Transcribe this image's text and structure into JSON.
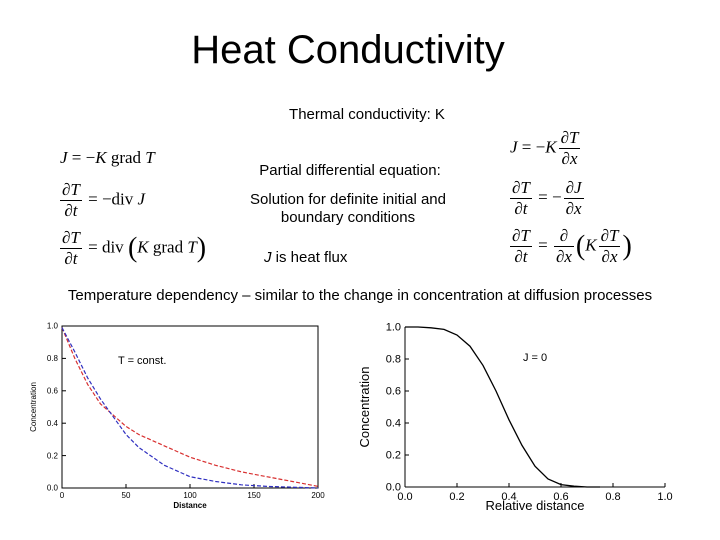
{
  "slide": {
    "title": "Heat Conductivity",
    "text_thermal_conductivity": "Thermal conductivity: K",
    "text_pde": "Partial differential equation:",
    "text_solution": "Solution for definite initial and boundary conditions",
    "text_flux_var": "J",
    "text_flux_rest": " is heat flux",
    "text_temperature": "Temperature dependency – similar to the change in concentration at diffusion processes"
  },
  "equations": {
    "left_1": "J = −K grad T",
    "left_2_rhs": "= −div J",
    "left_3_rhs": "= div (K grad T)",
    "right_1": "J = −K ∂T/∂x",
    "right_2": "∂T/∂t = −∂J/∂x",
    "right_3": "∂T/∂t = ∂/∂x (K ∂T/∂x)"
  },
  "chart_data": [
    {
      "type": "line",
      "xlabel": "Distance",
      "ylabel": "Concentration",
      "annotation": "T = const.",
      "xlim": [
        0,
        200
      ],
      "ylim": [
        0,
        1.0
      ],
      "xticks": [
        "0",
        "50",
        "100",
        "150",
        "200"
      ],
      "yticks": [
        "0.0",
        "0.2",
        "0.4",
        "0.6",
        "0.8",
        "1.0"
      ],
      "series": [
        {
          "color": "#d83030",
          "x": [
            0,
            10,
            20,
            30,
            40,
            50,
            60,
            80,
            100,
            120,
            140,
            160,
            180,
            200
          ],
          "y": [
            0.99,
            0.8,
            0.64,
            0.52,
            0.45,
            0.38,
            0.33,
            0.26,
            0.19,
            0.14,
            0.1,
            0.07,
            0.04,
            0.01
          ]
        },
        {
          "color": "#3030c0",
          "x": [
            0,
            10,
            20,
            30,
            40,
            50,
            60,
            80,
            100,
            120,
            140,
            160,
            180,
            200
          ],
          "y": [
            0.99,
            0.84,
            0.68,
            0.55,
            0.44,
            0.33,
            0.25,
            0.14,
            0.07,
            0.04,
            0.02,
            0.01,
            0.005,
            0.0
          ]
        }
      ]
    },
    {
      "type": "line",
      "xlabel": "Relative distance",
      "ylabel": "Concentration",
      "annotation": "J = 0",
      "xlim": [
        0,
        1.0
      ],
      "ylim": [
        0,
        1.0
      ],
      "xticks": [
        "0.0",
        "0.2",
        "0.4",
        "0.6",
        "0.8",
        "1.0"
      ],
      "yticks": [
        "0.0",
        "0.2",
        "0.4",
        "0.6",
        "0.8",
        "1.0"
      ],
      "series": [
        {
          "color": "#000000",
          "x": [
            0,
            0.05,
            0.1,
            0.15,
            0.2,
            0.25,
            0.3,
            0.35,
            0.4,
            0.45,
            0.5,
            0.55,
            0.6,
            0.65,
            0.7,
            0.75
          ],
          "y": [
            1.0,
            1.0,
            0.995,
            0.985,
            0.95,
            0.88,
            0.76,
            0.6,
            0.42,
            0.26,
            0.13,
            0.05,
            0.015,
            0.005,
            0.0,
            0.0
          ]
        }
      ]
    }
  ]
}
